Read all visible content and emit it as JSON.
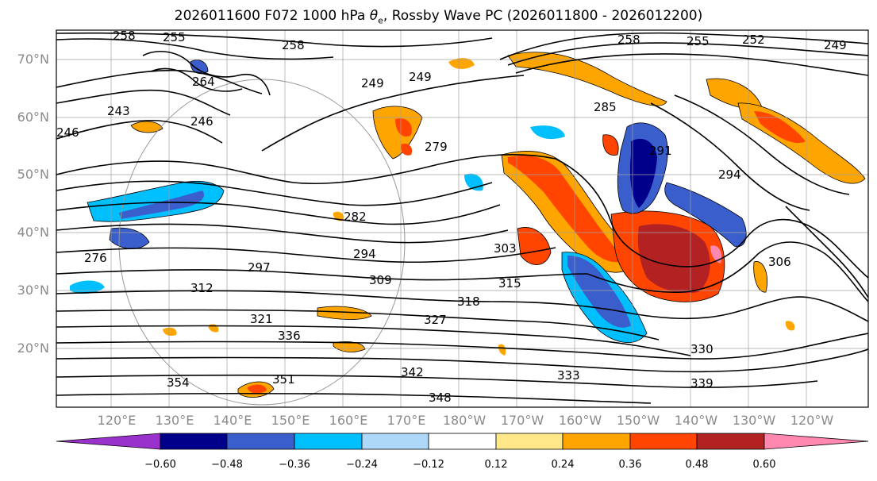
{
  "title": {
    "prefix": "2026011600 F072 1000 hPa ",
    "var": "θ",
    "var_sub": "e",
    "suffix": ", Rossby Wave PC (2026011800 - 2026012200)"
  },
  "map": {
    "lat_labels": [
      "70°N",
      "60°N",
      "50°N",
      "40°N",
      "30°N",
      "20°N"
    ],
    "lon_labels": [
      "120°E",
      "130°E",
      "140°E",
      "150°E",
      "160°E",
      "170°E",
      "180°W",
      "170°W",
      "160°W",
      "150°W",
      "140°W",
      "130°W",
      "120°W"
    ],
    "contour_labels": [
      "258",
      "255",
      "258",
      "258",
      "255",
      "252",
      "249",
      "249",
      "249",
      "243",
      "246",
      "246",
      "285",
      "279",
      "291",
      "294",
      "282",
      "303",
      "294",
      "306",
      "309",
      "315",
      "312",
      "318",
      "297",
      "276",
      "321",
      "327",
      "336",
      "330",
      "342",
      "333",
      "339",
      "354",
      "351",
      "348",
      "264"
    ]
  },
  "colorbar": {
    "ticks": [
      "−0.60",
      "−0.48",
      "−0.36",
      "−0.24",
      "−0.12",
      "0.12",
      "0.24",
      "0.36",
      "0.48",
      "0.60"
    ],
    "colors": [
      "#9932cc",
      "#00008b",
      "#3a5fcd",
      "#00bfff",
      "#add8f7",
      "#ffffff",
      "#ffe88a",
      "#ffa500",
      "#ff4500",
      "#b22222",
      "#ff88b0"
    ]
  }
}
